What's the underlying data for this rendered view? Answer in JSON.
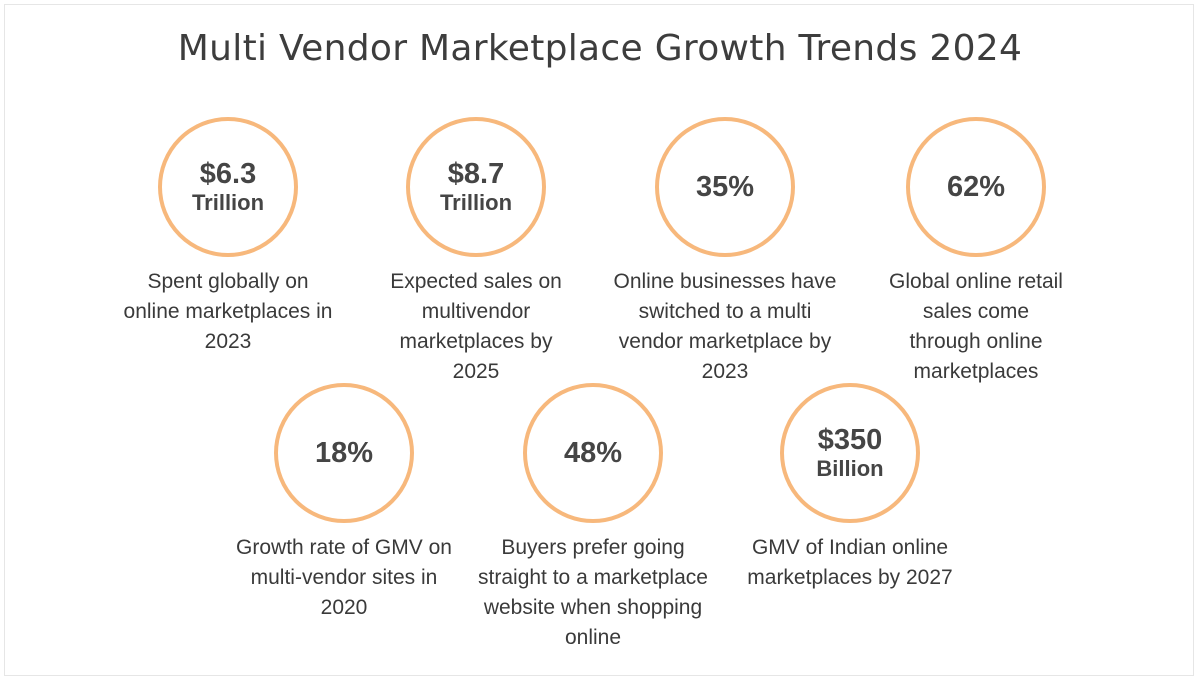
{
  "title": "Multi Vendor Marketplace Growth Trends 2024",
  "accent_color": "#f7b87c",
  "stats": [
    {
      "value": "$6.3",
      "unit": "Trillion",
      "description": "Spent globally on online marketplaces in 2023"
    },
    {
      "value": "$8.7",
      "unit": "Trillion",
      "description": "Expected sales on multivendor marketplaces by 2025"
    },
    {
      "value": "35%",
      "unit": "",
      "description": "Online businesses have switched to a multi vendor marketplace by 2023"
    },
    {
      "value": "62%",
      "unit": "",
      "description": "Global online retail sales come through online marketplaces"
    },
    {
      "value": "18%",
      "unit": "",
      "description": "Growth rate of GMV on multi-vendor sites in 2020"
    },
    {
      "value": "48%",
      "unit": "",
      "description": "Buyers prefer going straight to a marketplace website when shopping online"
    },
    {
      "value": "$350",
      "unit": "Billion",
      "description": "GMV of Indian online marketplaces by 2027"
    }
  ]
}
